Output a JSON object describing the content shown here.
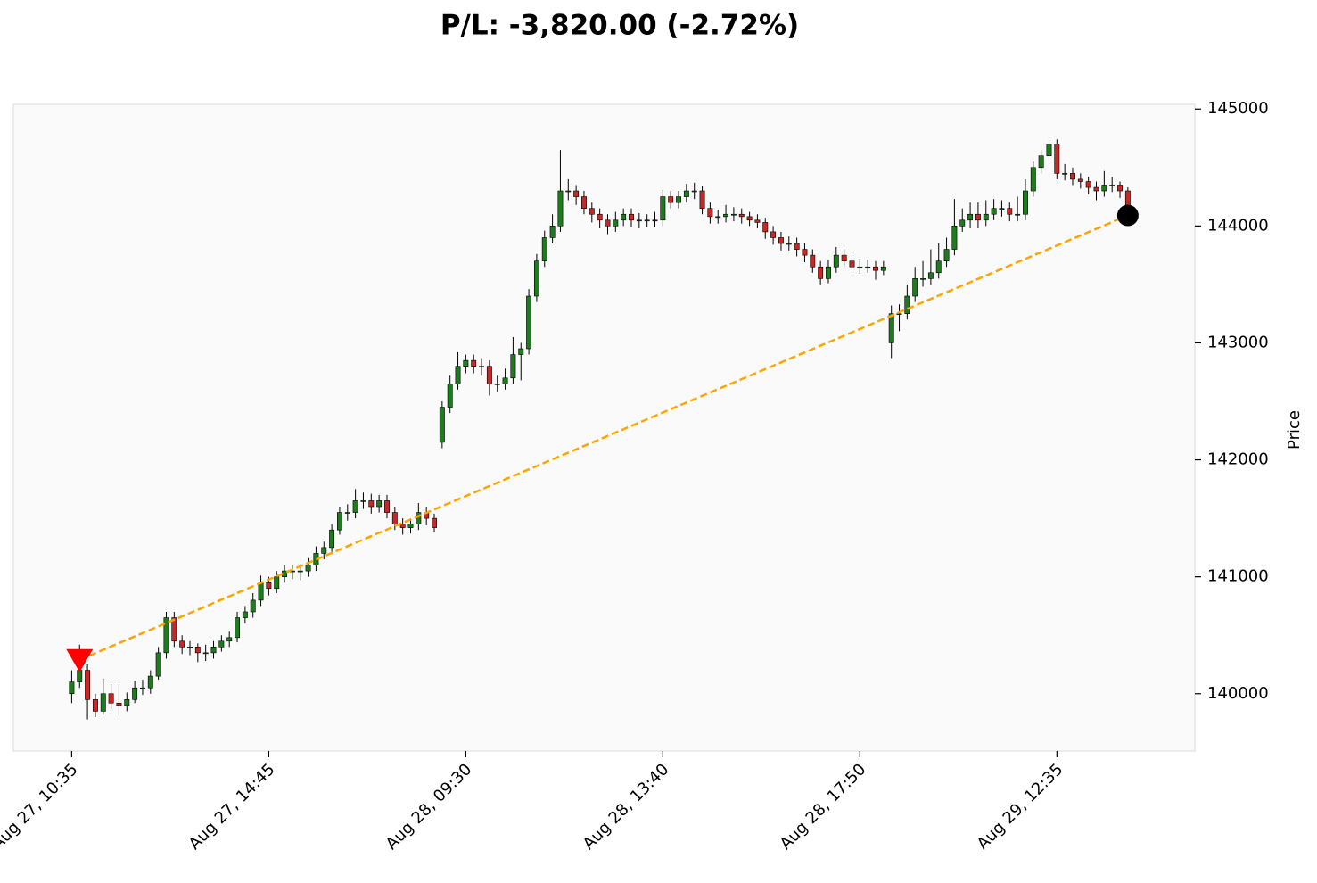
{
  "chart_data": {
    "type": "candlestick",
    "title": "P/L: -3,820.00 (-2.72%)",
    "ylabel": "Price",
    "xlim": [
      -7.4,
      142.5
    ],
    "ylim": [
      139510,
      145040
    ],
    "yticks": [
      140000,
      141000,
      142000,
      143000,
      144000,
      145000
    ],
    "xticks": [
      {
        "value": 0,
        "label": "Aug 27, 10:35"
      },
      {
        "value": 25,
        "label": "Aug 27, 14:45"
      },
      {
        "value": 50,
        "label": "Aug 28, 09:30"
      },
      {
        "value": 75,
        "label": "Aug 28, 13:40"
      },
      {
        "value": 100,
        "label": "Aug 28, 17:50"
      },
      {
        "value": 125,
        "label": "Aug 29, 12:35"
      }
    ],
    "up_color": "#1e7b1e",
    "down_color": "#c62828",
    "open": [
      140000,
      140100,
      140200,
      139950,
      139850,
      140000,
      139920,
      139900,
      139950,
      140050,
      140050,
      140150,
      140350,
      140650,
      140450,
      140400,
      140400,
      140350,
      140350,
      140400,
      140450,
      140480,
      140650,
      140700,
      140800,
      140950,
      140900,
      141000,
      141050,
      141050,
      141050,
      141100,
      141200,
      141250,
      141400,
      141550,
      141550,
      141650,
      141650,
      141600,
      141650,
      141550,
      141450,
      141420,
      141450,
      141550,
      141500,
      142150,
      142450,
      142650,
      142800,
      142850,
      142800,
      142800,
      142650,
      142650,
      142700,
      142900,
      142950,
      143400,
      143700,
      143900,
      144000,
      144300,
      144300,
      144250,
      144150,
      144100,
      144050,
      144000,
      144050,
      144100,
      144050,
      144050,
      144050,
      144050,
      144250,
      144200,
      144250,
      144300,
      144300,
      144150,
      144080,
      144080,
      144100,
      144100,
      144080,
      144050,
      144030,
      143950,
      143900,
      143850,
      143850,
      143800,
      143750,
      143650,
      143550,
      143650,
      143750,
      143700,
      143650,
      143650,
      143650,
      143620,
      143000,
      143250,
      143250,
      143400,
      143550,
      143550,
      143600,
      143700,
      143800,
      144000,
      144050,
      144100,
      144050,
      144100,
      144150,
      144150,
      144100,
      144100,
      144300,
      144500,
      144600,
      144700,
      144450,
      144450,
      144400,
      144380,
      144330,
      144300,
      144350,
      144350,
      144300
    ],
    "high": [
      140200,
      140420,
      140250,
      140000,
      140130,
      140080,
      140080,
      140010,
      140110,
      140120,
      140200,
      140400,
      140700,
      140700,
      140500,
      140450,
      140430,
      140420,
      140450,
      140500,
      140530,
      140700,
      140750,
      140860,
      141010,
      141000,
      141050,
      141100,
      141100,
      141110,
      141160,
      141260,
      141300,
      141450,
      141600,
      141620,
      141750,
      141720,
      141710,
      141700,
      141700,
      141600,
      141500,
      141500,
      141630,
      141600,
      141540,
      142500,
      142720,
      142920,
      142900,
      142900,
      142870,
      142850,
      142720,
      142780,
      143050,
      143000,
      143460,
      143760,
      143960,
      144100,
      144650,
      144400,
      144350,
      144300,
      144200,
      144150,
      144100,
      144120,
      144150,
      144150,
      144110,
      144100,
      144120,
      144310,
      144300,
      144300,
      144360,
      144370,
      144340,
      144200,
      144140,
      144180,
      144160,
      144150,
      144120,
      144100,
      144070,
      144000,
      143950,
      143910,
      143900,
      143850,
      143800,
      143700,
      143710,
      143820,
      143800,
      143750,
      143720,
      143710,
      143700,
      143700,
      143320,
      143330,
      143500,
      143650,
      143700,
      143800,
      143850,
      143900,
      144230,
      144150,
      144200,
      144200,
      144220,
      144230,
      144220,
      144200,
      144250,
      144400,
      144550,
      144650,
      144760,
      144740,
      144530,
      144500,
      144450,
      144420,
      144380,
      144470,
      144420,
      144380,
      144330
    ],
    "low": [
      139920,
      140050,
      139780,
      139800,
      139820,
      139870,
      139820,
      139850,
      139920,
      139990,
      140000,
      140120,
      140300,
      140400,
      140340,
      140330,
      140270,
      140280,
      140300,
      140360,
      140400,
      140440,
      140600,
      140650,
      140750,
      140840,
      140860,
      140950,
      140980,
      140970,
      141000,
      141050,
      141150,
      141200,
      141360,
      141480,
      141500,
      141580,
      141540,
      141550,
      141500,
      141400,
      141360,
      141370,
      141400,
      141440,
      141380,
      142100,
      142400,
      142600,
      142740,
      142740,
      142720,
      142550,
      142580,
      142600,
      142650,
      142680,
      142900,
      143350,
      143650,
      143850,
      143950,
      144220,
      144180,
      144100,
      144030,
      143980,
      143930,
      143950,
      144000,
      143990,
      143980,
      143990,
      143990,
      144000,
      144150,
      144150,
      144200,
      144230,
      144100,
      144020,
      144020,
      144030,
      144040,
      144020,
      144000,
      143980,
      143890,
      143840,
      143790,
      143790,
      143740,
      143690,
      143600,
      143500,
      143510,
      143600,
      143650,
      143600,
      143590,
      143600,
      143540,
      143580,
      142870,
      143100,
      143200,
      143350,
      143480,
      143500,
      143550,
      143650,
      143750,
      143950,
      143980,
      143980,
      144000,
      144050,
      144080,
      144040,
      144040,
      144050,
      144250,
      144450,
      144550,
      144400,
      144390,
      144350,
      144320,
      144270,
      144220,
      144250,
      144290,
      144240,
      144100
    ],
    "close": [
      140100,
      140200,
      139950,
      139850,
      140000,
      139920,
      139900,
      139950,
      140050,
      140050,
      140150,
      140350,
      140650,
      140450,
      140400,
      140400,
      140350,
      140350,
      140400,
      140450,
      140480,
      140650,
      140700,
      140800,
      140950,
      140900,
      141000,
      141050,
      141050,
      141050,
      141100,
      141200,
      141250,
      141400,
      141550,
      141550,
      141650,
      141650,
      141600,
      141650,
      141550,
      141450,
      141420,
      141450,
      141550,
      141500,
      141420,
      142450,
      142650,
      142800,
      142850,
      142800,
      142800,
      142650,
      142650,
      142700,
      142900,
      142950,
      143400,
      143700,
      143900,
      144000,
      144300,
      144300,
      144250,
      144150,
      144100,
      144050,
      144000,
      144050,
      144100,
      144050,
      144050,
      144050,
      144050,
      144250,
      144200,
      144250,
      144300,
      144300,
      144150,
      144080,
      144080,
      144100,
      144100,
      144080,
      144050,
      144030,
      143950,
      143900,
      143850,
      143850,
      143800,
      143750,
      143650,
      143550,
      143650,
      143750,
      143700,
      143650,
      143650,
      143650,
      143620,
      143650,
      143250,
      143250,
      143400,
      143550,
      143550,
      143600,
      143700,
      143800,
      144000,
      144050,
      144100,
      144050,
      144100,
      144150,
      144150,
      144100,
      144100,
      144300,
      144500,
      144600,
      144700,
      144450,
      144450,
      144400,
      144380,
      144330,
      144300,
      144350,
      144350,
      144300,
      144150
    ],
    "entry": {
      "x": 1,
      "y": 140290,
      "color": "#ff0000"
    },
    "exit": {
      "x": 134,
      "y": 144090,
      "color": "#000000"
    },
    "trade_line_color": "#ffa500"
  }
}
